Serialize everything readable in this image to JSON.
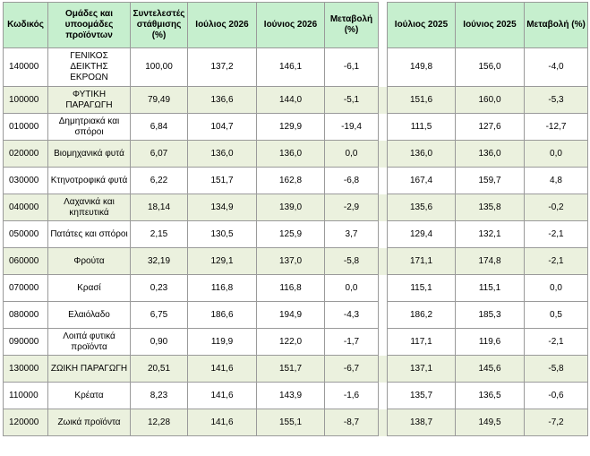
{
  "headers": [
    "Κωδικός",
    "Ομάδες και υποομάδες προϊόντων",
    "Συντελεστές στάθμισης (%)",
    "Ιούλιος 2026",
    "Ιούνιος 2026",
    "Μεταβολή (%)",
    "Ιούλιος 2025",
    "Ιούνιος 2025",
    "Μεταβολή (%)"
  ],
  "rows": [
    {
      "code": "140000",
      "name": "ΓΕΝΙΚΟΣ ΔΕΙΚΤΗΣ ΕΚΡΟΩΝ",
      "weight": "100,00",
      "jul2026": "137,2",
      "jun2026": "146,1",
      "chg2026": "-6,1",
      "jul2025": "149,8",
      "jun2025": "156,0",
      "chg2025": "-4,0"
    },
    {
      "code": "100000",
      "name": "ΦΥΤΙΚΗ ΠΑΡΑΓΩΓΗ",
      "weight": "79,49",
      "jul2026": "136,6",
      "jun2026": "144,0",
      "chg2026": "-5,1",
      "jul2025": "151,6",
      "jun2025": "160,0",
      "chg2025": "-5,3"
    },
    {
      "code": "010000",
      "name": "Δημητριακά και σπόροι",
      "weight": "6,84",
      "jul2026": "104,7",
      "jun2026": "129,9",
      "chg2026": "-19,4",
      "jul2025": "111,5",
      "jun2025": "127,6",
      "chg2025": "-12,7"
    },
    {
      "code": "020000",
      "name": "Βιομηχανικά φυτά",
      "weight": "6,07",
      "jul2026": "136,0",
      "jun2026": "136,0",
      "chg2026": "0,0",
      "jul2025": "136,0",
      "jun2025": "136,0",
      "chg2025": "0,0"
    },
    {
      "code": "030000",
      "name": "Κτηνοτροφικά φυτά",
      "weight": "6,22",
      "jul2026": "151,7",
      "jun2026": "162,8",
      "chg2026": "-6,8",
      "jul2025": "167,4",
      "jun2025": "159,7",
      "chg2025": "4,8"
    },
    {
      "code": "040000",
      "name": "Λαχανικά και κηπευτικά",
      "weight": "18,14",
      "jul2026": "134,9",
      "jun2026": "139,0",
      "chg2026": "-2,9",
      "jul2025": "135,6",
      "jun2025": "135,8",
      "chg2025": "-0,2"
    },
    {
      "code": "050000",
      "name": "Πατάτες και σπόροι",
      "weight": "2,15",
      "jul2026": "130,5",
      "jun2026": "125,9",
      "chg2026": "3,7",
      "jul2025": "129,4",
      "jun2025": "132,1",
      "chg2025": "-2,1"
    },
    {
      "code": "060000",
      "name": "Φρούτα",
      "weight": "32,19",
      "jul2026": "129,1",
      "jun2026": "137,0",
      "chg2026": "-5,8",
      "jul2025": "171,1",
      "jun2025": "174,8",
      "chg2025": "-2,1"
    },
    {
      "code": "070000",
      "name": "Κρασί",
      "weight": "0,23",
      "jul2026": "116,8",
      "jun2026": "116,8",
      "chg2026": "0,0",
      "jul2025": "115,1",
      "jun2025": "115,1",
      "chg2025": "0,0"
    },
    {
      "code": "080000",
      "name": "Ελαιόλαδο",
      "weight": "6,75",
      "jul2026": "186,6",
      "jun2026": "194,9",
      "chg2026": "-4,3",
      "jul2025": "186,2",
      "jun2025": "185,3",
      "chg2025": "0,5"
    },
    {
      "code": "090000",
      "name": "Λοιπά φυτικά προϊόντα",
      "weight": "0,90",
      "jul2026": "119,9",
      "jun2026": "122,0",
      "chg2026": "-1,7",
      "jul2025": "117,1",
      "jun2025": "119,6",
      "chg2025": "-2,1"
    },
    {
      "code": "130000",
      "name": "ΖΩΙΚΗ ΠΑΡΑΓΩΓΗ",
      "weight": "20,51",
      "jul2026": "141,6",
      "jun2026": "151,7",
      "chg2026": "-6,7",
      "jul2025": "137,1",
      "jun2025": "145,6",
      "chg2025": "-5,8"
    },
    {
      "code": "110000",
      "name": "Κρέατα",
      "weight": "8,23",
      "jul2026": "141,6",
      "jun2026": "143,9",
      "chg2026": "-1,6",
      "jul2025": "135,7",
      "jun2025": "136,5",
      "chg2025": "-0,6"
    },
    {
      "code": "120000",
      "name": "Ζωικά προϊόντα",
      "weight": "12,28",
      "jul2026": "141,6",
      "jun2026": "155,1",
      "chg2026": "-8,7",
      "jul2025": "138,7",
      "jun2025": "149,5",
      "chg2025": "-7,2"
    }
  ],
  "colors": {
    "header_bg": "#c6efce",
    "alt_row_bg": "#ebf1de",
    "border": "#9a9a9a"
  }
}
